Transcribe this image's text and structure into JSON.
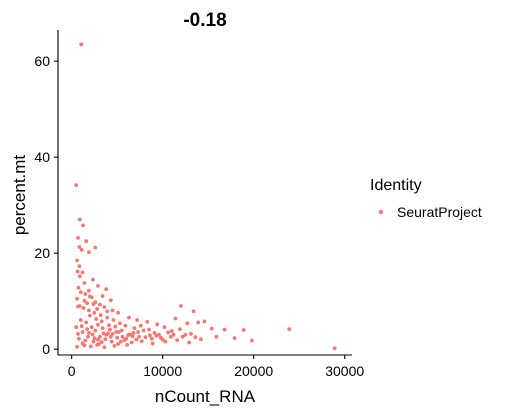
{
  "chart_data": {
    "type": "scatter",
    "title": "-0.18",
    "xlabel": "nCount_RNA",
    "ylabel": "percent.mt",
    "xlim": [
      -1500,
      30800
    ],
    "ylim": [
      -1.2,
      66.5
    ],
    "xticks": [
      0,
      10000,
      20000,
      30000
    ],
    "yticks": [
      0,
      20,
      40,
      60
    ],
    "grid": false,
    "legend": {
      "title": "Identity",
      "position": "right"
    },
    "series": [
      {
        "name": "SeuratProject",
        "color": "#F8766D",
        "points": [
          [
            1050,
            63.5
          ],
          [
            500,
            34.2
          ],
          [
            900,
            27.0
          ],
          [
            1250,
            25.8
          ],
          [
            700,
            23.2
          ],
          [
            1600,
            22.5
          ],
          [
            850,
            21.3
          ],
          [
            2600,
            21.2
          ],
          [
            1100,
            20.7
          ],
          [
            1900,
            20.2
          ],
          [
            600,
            18.5
          ],
          [
            850,
            17.3
          ],
          [
            650,
            16.2
          ],
          [
            1200,
            16.0
          ],
          [
            900,
            15.2
          ],
          [
            2350,
            14.5
          ],
          [
            1400,
            13.8
          ],
          [
            2900,
            13.2
          ],
          [
            750,
            12.8
          ],
          [
            3800,
            12.5
          ],
          [
            1900,
            12.2
          ],
          [
            1500,
            11.5
          ],
          [
            3400,
            11.1
          ],
          [
            2200,
            10.8
          ],
          [
            600,
            10.5
          ],
          [
            4300,
            10.2
          ],
          [
            2600,
            9.8
          ],
          [
            1700,
            9.6
          ],
          [
            3100,
            9.3
          ],
          [
            900,
            9.0
          ],
          [
            3600,
            8.8
          ],
          [
            4500,
            8.1
          ],
          [
            5100,
            7.6
          ],
          [
            3900,
            7.9
          ],
          [
            12000,
            9.0
          ],
          [
            13400,
            7.9
          ],
          [
            11400,
            6.4
          ],
          [
            14600,
            5.8
          ],
          [
            12700,
            5.4
          ],
          [
            13900,
            5.6
          ],
          [
            15400,
            4.3
          ],
          [
            11900,
            4.2
          ],
          [
            10200,
            4.6
          ],
          [
            9400,
            5.2
          ],
          [
            8300,
            5.7
          ],
          [
            7200,
            6.1
          ],
          [
            6300,
            6.6
          ],
          [
            16800,
            4.1
          ],
          [
            17900,
            2.3
          ],
          [
            18900,
            4.0
          ],
          [
            23900,
            4.2
          ],
          [
            28900,
            0.2
          ],
          [
            19800,
            1.8
          ],
          [
            15900,
            2.6
          ],
          [
            14200,
            2.1
          ],
          [
            13100,
            3.2
          ],
          [
            12200,
            2.6
          ],
          [
            11200,
            3.0
          ],
          [
            10600,
            3.5
          ],
          [
            9800,
            2.4
          ],
          [
            9100,
            3.4
          ],
          [
            8600,
            2.9
          ],
          [
            7900,
            3.9
          ],
          [
            7400,
            2.6
          ],
          [
            6900,
            4.4
          ],
          [
            6400,
            3.1
          ],
          [
            5900,
            4.9
          ],
          [
            5600,
            2.6
          ],
          [
            5300,
            5.4
          ],
          [
            4900,
            3.6
          ],
          [
            4600,
            6.1
          ],
          [
            4200,
            4.1
          ],
          [
            3900,
            6.6
          ],
          [
            3500,
            3.3
          ],
          [
            3200,
            7.1
          ],
          [
            2900,
            5.1
          ],
          [
            2500,
            7.6
          ],
          [
            2200,
            4.6
          ],
          [
            1900,
            8.1
          ],
          [
            1600,
            5.6
          ],
          [
            1300,
            8.6
          ],
          [
            1000,
            6.1
          ],
          [
            700,
            8.9
          ],
          [
            500,
            4.6
          ],
          [
            1200,
            3.6
          ],
          [
            1800,
            2.6
          ],
          [
            2400,
            1.6
          ],
          [
            3000,
            1.1
          ],
          [
            3700,
            2.1
          ],
          [
            4400,
            1.6
          ],
          [
            5100,
            1.1
          ],
          [
            5800,
            1.9
          ],
          [
            6600,
            1.4
          ],
          [
            7700,
            1.7
          ],
          [
            8900,
            1.2
          ],
          [
            10300,
            1.6
          ],
          [
            11600,
            1.9
          ],
          [
            12900,
            1.4
          ],
          [
            600,
            0.5
          ],
          [
            1400,
            0.8
          ],
          [
            2100,
            0.6
          ],
          [
            2800,
            0.9
          ],
          [
            3600,
            0.4
          ],
          [
            4700,
            0.7
          ],
          [
            6100,
            0.9
          ],
          [
            800,
            2.2
          ],
          [
            1500,
            1.8
          ],
          [
            2300,
            3.1
          ],
          [
            3100,
            2.6
          ],
          [
            4000,
            3.3
          ],
          [
            5000,
            2.4
          ],
          [
            6200,
            2.9
          ],
          [
            7300,
            3.6
          ],
          [
            8500,
            4.1
          ],
          [
            9600,
            3.0
          ],
          [
            10900,
            2.6
          ],
          [
            2000,
            7.0
          ],
          [
            2700,
            6.3
          ],
          [
            3300,
            5.8
          ],
          [
            4100,
            5.0
          ],
          [
            1100,
            4.8
          ],
          [
            1700,
            4.2
          ],
          [
            2600,
            3.9
          ],
          [
            3400,
            4.4
          ],
          [
            4800,
            4.7
          ],
          [
            5500,
            3.9
          ],
          [
            6800,
            3.4
          ],
          [
            7600,
            4.9
          ],
          [
            8800,
            2.2
          ],
          [
            1400,
            10.1
          ],
          [
            2000,
            11.0
          ],
          [
            2800,
            8.4
          ],
          [
            1000,
            11.9
          ],
          [
            2400,
            9.4
          ],
          [
            1200,
            1.2
          ],
          [
            2500,
            2.3
          ],
          [
            3300,
            1.5
          ],
          [
            4300,
            2.6
          ],
          [
            5400,
            1.6
          ],
          [
            700,
            3.2
          ],
          [
            1900,
            3.4
          ],
          [
            2900,
            2.0
          ],
          [
            3800,
            3.0
          ],
          [
            4500,
            3.2
          ],
          [
            5200,
            3.6
          ],
          [
            6000,
            2.2
          ],
          [
            6700,
            2.7
          ],
          [
            7100,
            2.0
          ],
          [
            8100,
            2.5
          ],
          [
            9300,
            2.8
          ],
          [
            10000,
            2.0
          ],
          [
            11000,
            3.8
          ],
          [
            12500,
            3.0
          ],
          [
            13600,
            2.5
          ]
        ]
      }
    ]
  }
}
